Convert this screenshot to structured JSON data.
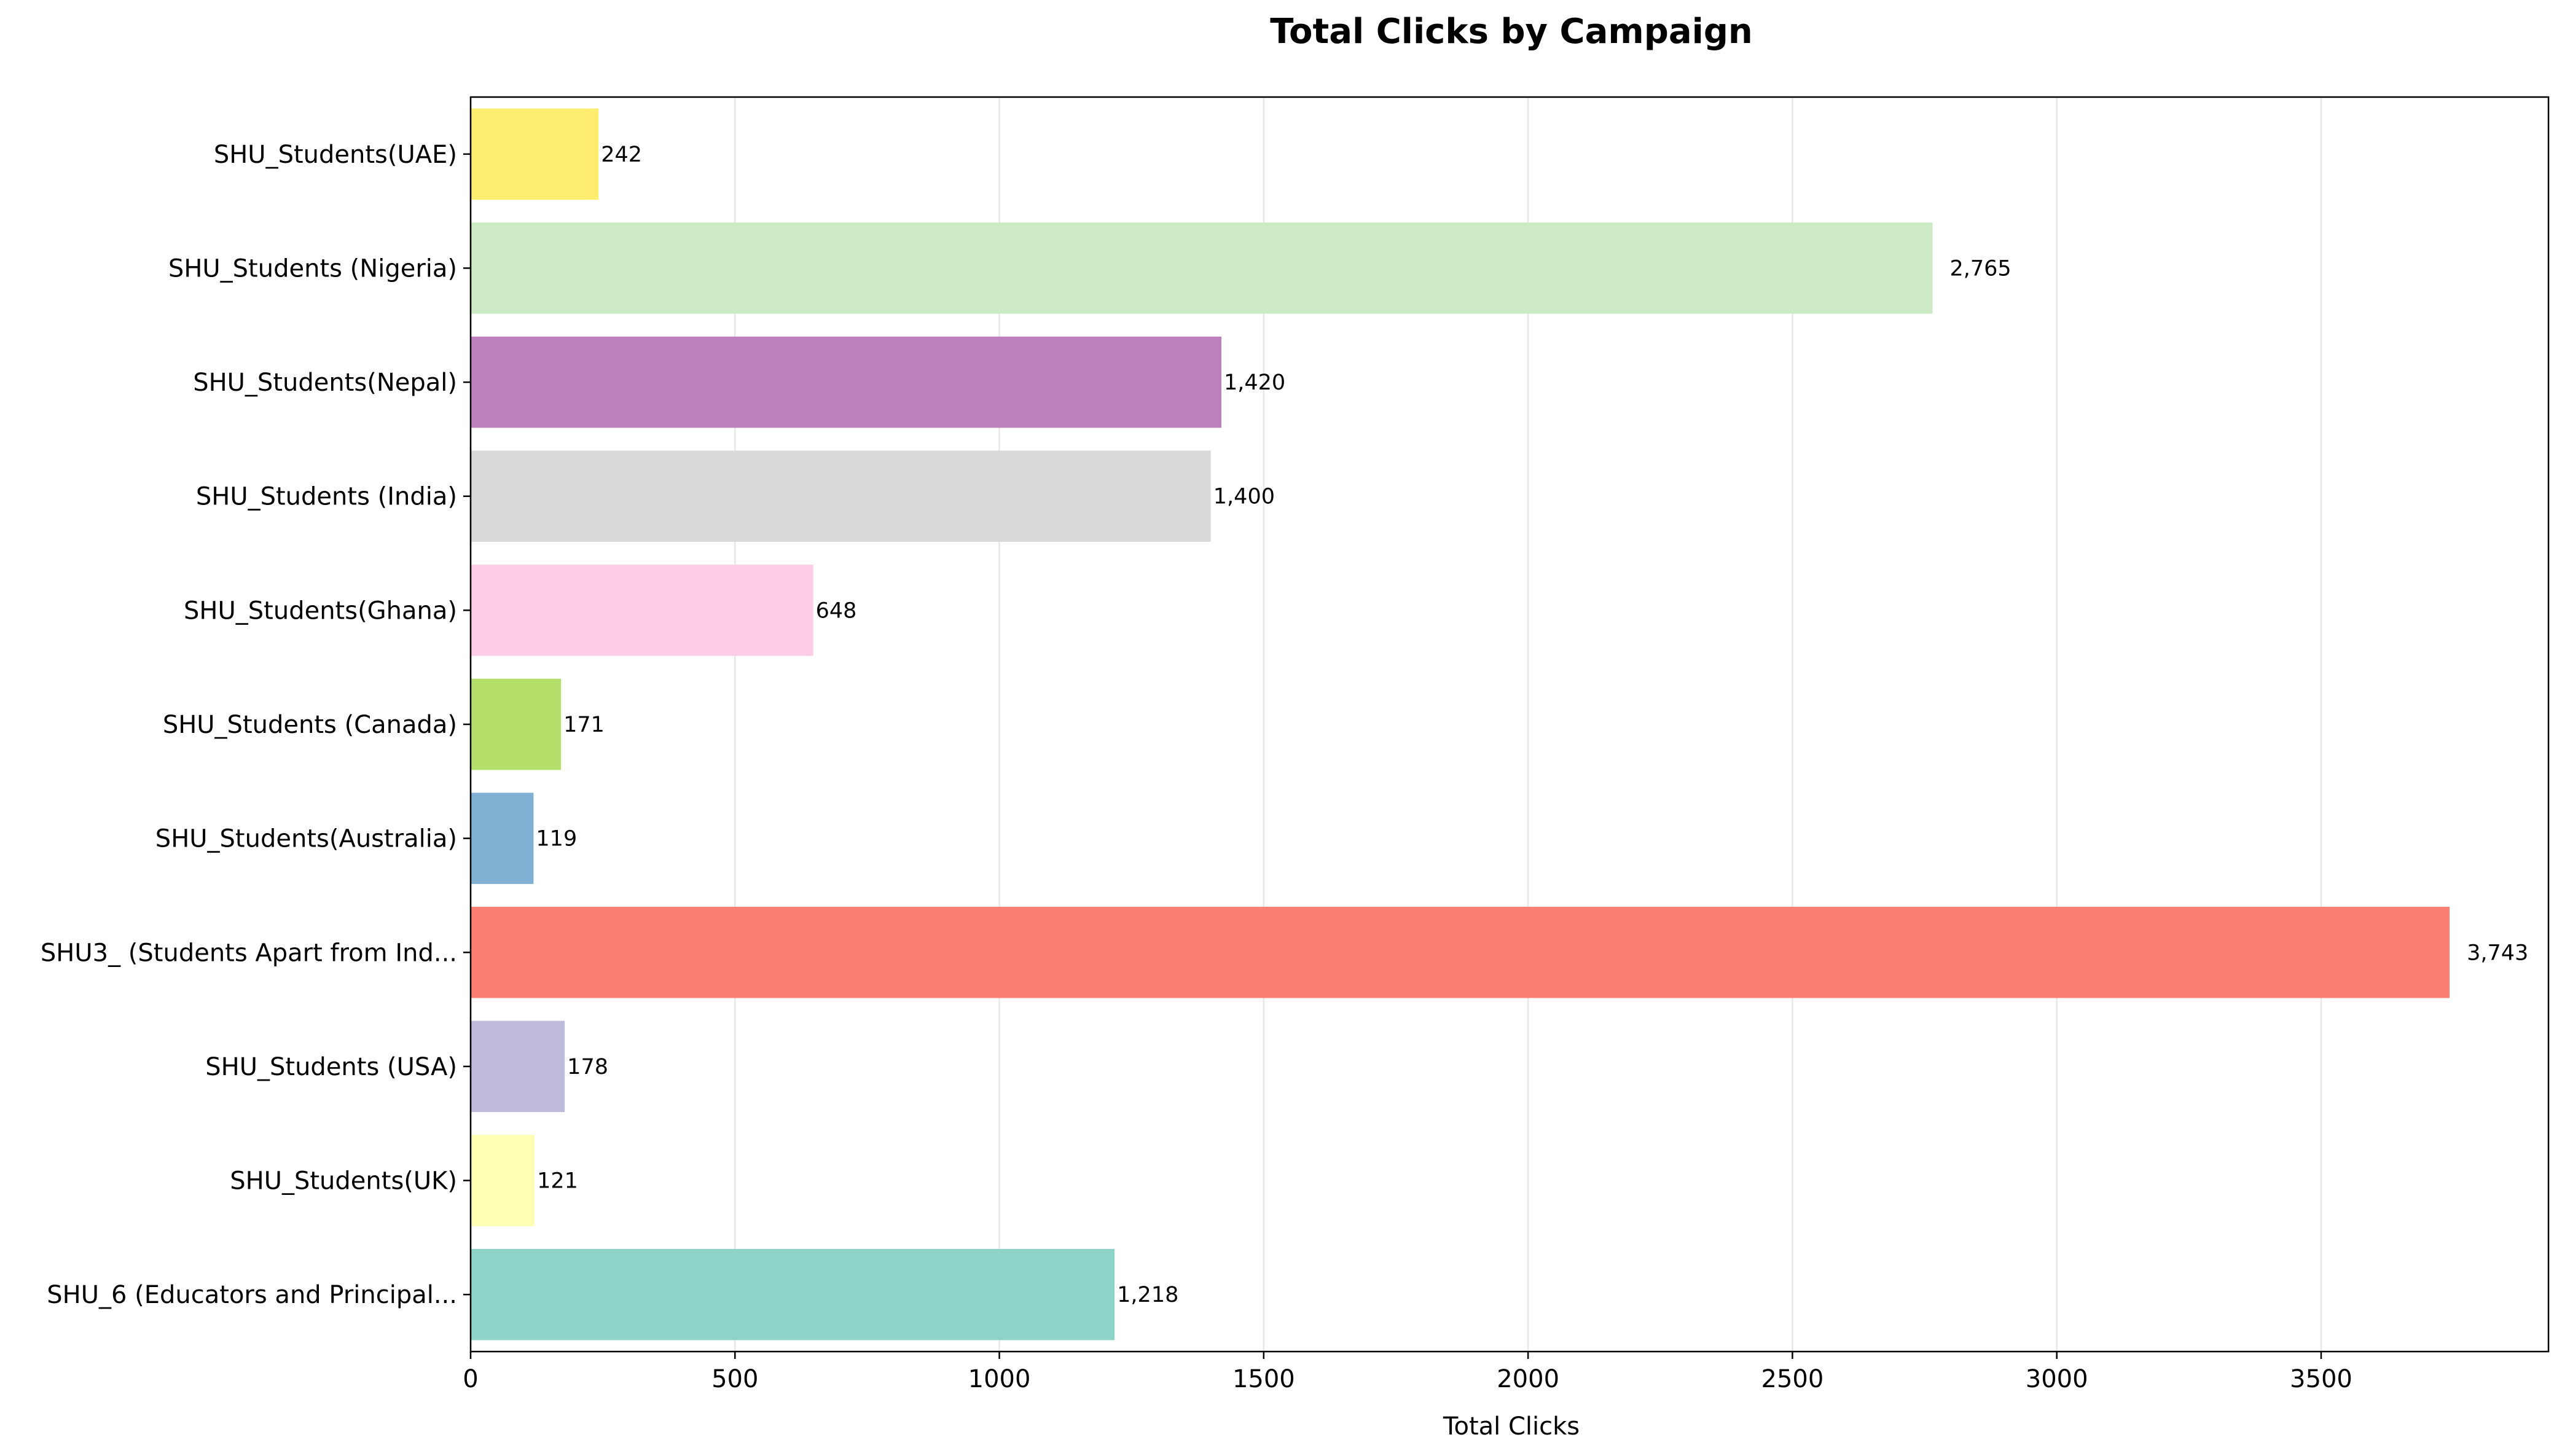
{
  "chart_data": {
    "type": "bar",
    "orientation": "horizontal",
    "title": "Total Clicks by Campaign",
    "xlabel": "Total Clicks",
    "ylabel": "",
    "xlim": [
      0,
      3930
    ],
    "xticks": [
      0,
      500,
      1000,
      1500,
      2000,
      2500,
      3000,
      3500
    ],
    "xtick_labels": [
      "0",
      "500",
      "1000",
      "1500",
      "2000",
      "2500",
      "3000",
      "3500"
    ],
    "grid": "x",
    "categories": [
      "SHU_6 (Educators and Principal...",
      "SHU_Students(UK)",
      "SHU_Students (USA)",
      "SHU3_ (Students Apart from Ind...",
      "SHU_Students(Australia)",
      "SHU_Students (Canada)",
      "SHU_Students(Ghana)",
      "SHU_Students (India)",
      "SHU_Students(Nepal)",
      "SHU_Students (Nigeria)",
      "SHU_Students(UAE)"
    ],
    "values": [
      1218,
      121,
      178,
      3743,
      119,
      171,
      648,
      1400,
      1420,
      2765,
      242
    ],
    "value_labels": [
      "1,218",
      "121",
      "178",
      "3,743",
      "119",
      "171",
      "648",
      "1,400",
      "1,420",
      "2,765",
      "242"
    ],
    "colors": [
      "#8dd3c7",
      "#ffffb3",
      "#bebada",
      "#fb8072",
      "#80b1d3",
      "#b3de69",
      "#fccde5",
      "#d9d9d9",
      "#bc80bd",
      "#ccebc5",
      "#ffed6f"
    ]
  }
}
